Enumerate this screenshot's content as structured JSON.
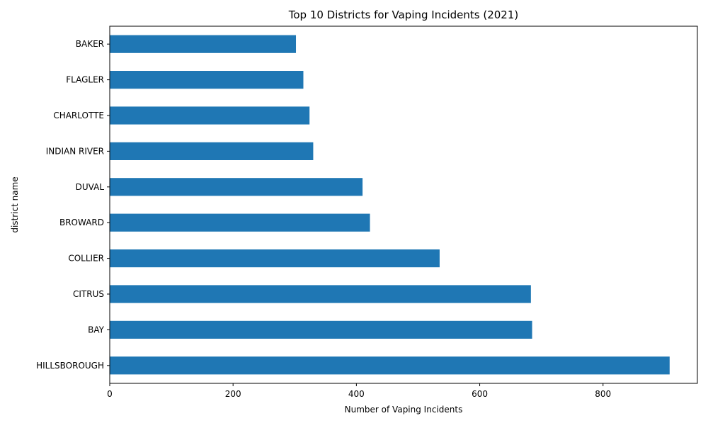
{
  "chart_data": {
    "type": "bar",
    "orientation": "horizontal",
    "title": "Top 10 Districts for Vaping Incidents (2021)",
    "xlabel": "Number of Vaping Incidents",
    "ylabel": "district name",
    "categories": [
      "HILLSBOROUGH",
      "BAY",
      "CITRUS",
      "COLLIER",
      "BROWARD",
      "DUVAL",
      "INDIAN RIVER",
      "CHARLOTTE",
      "FLAGLER",
      "BAKER"
    ],
    "values": [
      908,
      685,
      683,
      535,
      422,
      410,
      330,
      324,
      314,
      302
    ],
    "xlim": [
      0,
      953
    ],
    "xticks": [
      0,
      200,
      400,
      600,
      800
    ],
    "xtick_labels": [
      "0",
      "200",
      "400",
      "600",
      "800"
    ],
    "bar_color": "#1f77b4",
    "grid": false,
    "legend": "none"
  }
}
